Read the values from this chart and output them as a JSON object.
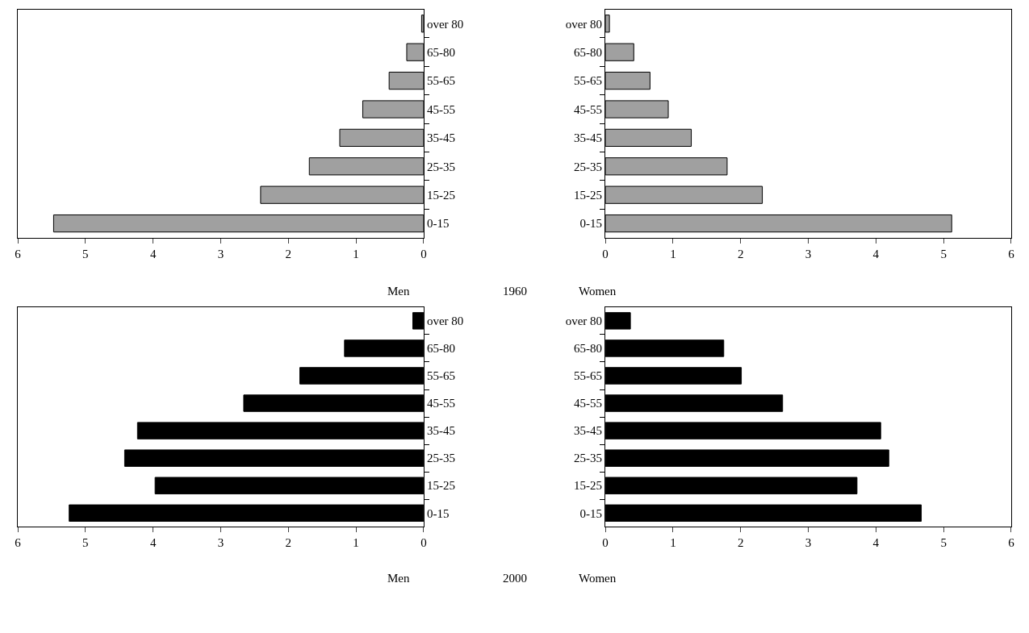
{
  "chart_data": [
    {
      "type": "bar",
      "orientation": "horizontal",
      "xlabel": "Men",
      "annotations": [
        "1960"
      ],
      "categories": [
        "over 80",
        "65-80",
        "55-65",
        "45-55",
        "35-45",
        "25-35",
        "15-25",
        "0-15"
      ],
      "values": [
        0.03,
        0.25,
        0.51,
        0.9,
        1.24,
        1.69,
        2.41,
        5.47
      ],
      "color": "#a0a0a0",
      "xlim": [
        6,
        0
      ],
      "xticks": [
        6,
        5,
        4,
        3,
        2,
        1,
        0
      ]
    },
    {
      "type": "bar",
      "orientation": "horizontal",
      "xlabel": "Women",
      "categories": [
        "over 80",
        "65-80",
        "55-65",
        "45-55",
        "35-45",
        "25-35",
        "15-25",
        "0-15"
      ],
      "values": [
        0.06,
        0.42,
        0.66,
        0.93,
        1.27,
        1.8,
        2.32,
        5.12
      ],
      "color": "#a0a0a0",
      "xlim": [
        0,
        6
      ],
      "xticks": [
        0,
        1,
        2,
        3,
        4,
        5,
        6
      ]
    },
    {
      "type": "bar",
      "orientation": "horizontal",
      "xlabel": "Men",
      "annotations": [
        "2000"
      ],
      "categories": [
        "over 80",
        "65-80",
        "55-65",
        "45-55",
        "35-45",
        "25-35",
        "15-25",
        "0-15"
      ],
      "values": [
        0.16,
        1.17,
        1.83,
        2.66,
        4.23,
        4.42,
        3.97,
        5.24
      ],
      "color": "#000000",
      "xlim": [
        6,
        0
      ],
      "xticks": [
        6,
        5,
        4,
        3,
        2,
        1,
        0
      ]
    },
    {
      "type": "bar",
      "orientation": "horizontal",
      "xlabel": "Women",
      "categories": [
        "over 80",
        "65-80",
        "55-65",
        "45-55",
        "35-45",
        "25-35",
        "15-25",
        "0-15"
      ],
      "values": [
        0.37,
        1.75,
        2.01,
        2.62,
        4.07,
        4.19,
        3.72,
        4.67
      ],
      "color": "#000000",
      "xlim": [
        0,
        6
      ],
      "xticks": [
        0,
        1,
        2,
        3,
        4,
        5,
        6
      ]
    }
  ]
}
